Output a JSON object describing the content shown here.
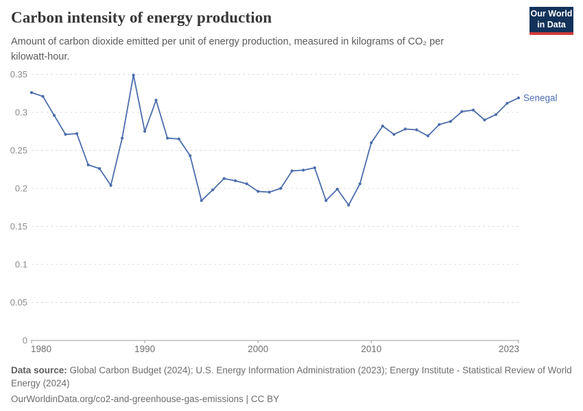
{
  "header": {
    "title": "Carbon intensity of energy production",
    "subtitle": "Amount of carbon dioxide emitted per unit of energy production, measured in kilograms of CO₂ per kilowatt-hour.",
    "logo": {
      "line1": "Our World",
      "line2": "in Data"
    }
  },
  "chart_data": {
    "type": "line",
    "title": "Carbon intensity of energy production",
    "xlabel": "",
    "ylabel": "",
    "xlim": [
      1980,
      2023
    ],
    "ylim": [
      0,
      0.35
    ],
    "grid": "horizontal-dashed",
    "legend_position": "end-of-line-label",
    "xticks": [
      1980,
      1990,
      2000,
      2010,
      2023
    ],
    "xtick_labels": [
      "1980",
      "1990",
      "2000",
      "2010",
      "2023"
    ],
    "yticks": [
      0,
      0.05,
      0.1,
      0.15,
      0.2,
      0.25,
      0.3,
      0.35
    ],
    "ytick_labels": [
      "0",
      "0.05",
      "0.1",
      "0.15",
      "0.2",
      "0.25",
      "0.3",
      "0.35"
    ],
    "series": [
      {
        "name": "Senegal",
        "color": "#4c6cab",
        "x": [
          1980,
          1981,
          1982,
          1983,
          1984,
          1985,
          1986,
          1987,
          1988,
          1989,
          1990,
          1991,
          1992,
          1993,
          1994,
          1995,
          1996,
          1997,
          1998,
          1999,
          2000,
          2001,
          2002,
          2003,
          2004,
          2005,
          2006,
          2007,
          2008,
          2009,
          2010,
          2011,
          2012,
          2013,
          2014,
          2015,
          2016,
          2017,
          2018,
          2019,
          2020,
          2021,
          2022,
          2023
        ],
        "values": [
          0.326,
          0.321,
          0.296,
          0.271,
          0.272,
          0.231,
          0.226,
          0.204,
          0.266,
          0.349,
          0.275,
          0.316,
          0.266,
          0.265,
          0.243,
          0.184,
          0.198,
          0.213,
          0.21,
          0.206,
          0.196,
          0.195,
          0.2,
          0.223,
          0.224,
          0.227,
          0.184,
          0.199,
          0.178,
          0.206,
          0.26,
          0.282,
          0.271,
          0.278,
          0.277,
          0.269,
          0.284,
          0.288,
          0.301,
          0.303,
          0.29,
          0.297,
          0.312,
          0.319
        ]
      }
    ]
  },
  "footer": {
    "datasource_label": "Data source:",
    "datasource_text": " Global Carbon Budget (2024); U.S. Energy Information Administration (2023); Energy Institute - Statistical Review of World Energy (2024)",
    "url": "OurWorldinData.org/co2-and-greenhouse-gas-emissions",
    "license": " | CC BY"
  },
  "colors": {
    "line": "#4c6cab",
    "series_label": "#4d6db3",
    "logo_navy": "#13325a",
    "logo_red": "#cf3a3a",
    "gridline": "#dcdcdc",
    "axis": "#9e9e9e",
    "y_tick_text": "#8b8b8b",
    "x_tick_text": "#6f6f6f",
    "title_text": "#373737",
    "subtitle_text": "#5b5b5b",
    "footer_text": "#6d6d6d"
  }
}
